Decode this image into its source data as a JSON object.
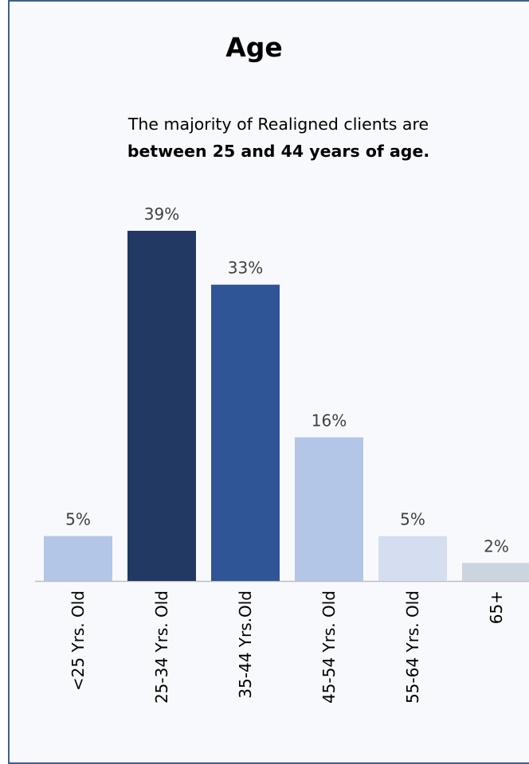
{
  "page": {
    "title": "Age",
    "subtitle_line1": "The majority of Realigned clients are",
    "subtitle_line2": "between 25 and 44 years of age."
  },
  "chart_data": {
    "type": "bar",
    "categories": [
      "<25 Yrs. Old",
      "25-34 Yrs. Old",
      "35-44 Yrs.Old",
      "45-54 Yrs. Old",
      "55-64 Yrs. Old",
      "65+"
    ],
    "values": [
      5,
      39,
      33,
      16,
      5,
      2
    ],
    "data_labels": [
      "5%",
      "39%",
      "33%",
      "16%",
      "5%",
      "2%"
    ],
    "unit": "%",
    "ylim": [
      0,
      40
    ],
    "grid": false,
    "legend": "none",
    "colors": [
      "#b4c6e7",
      "#223a63",
      "#2f5597",
      "#b4c6e7",
      "#d4def0",
      "#ccd4e0"
    ]
  }
}
